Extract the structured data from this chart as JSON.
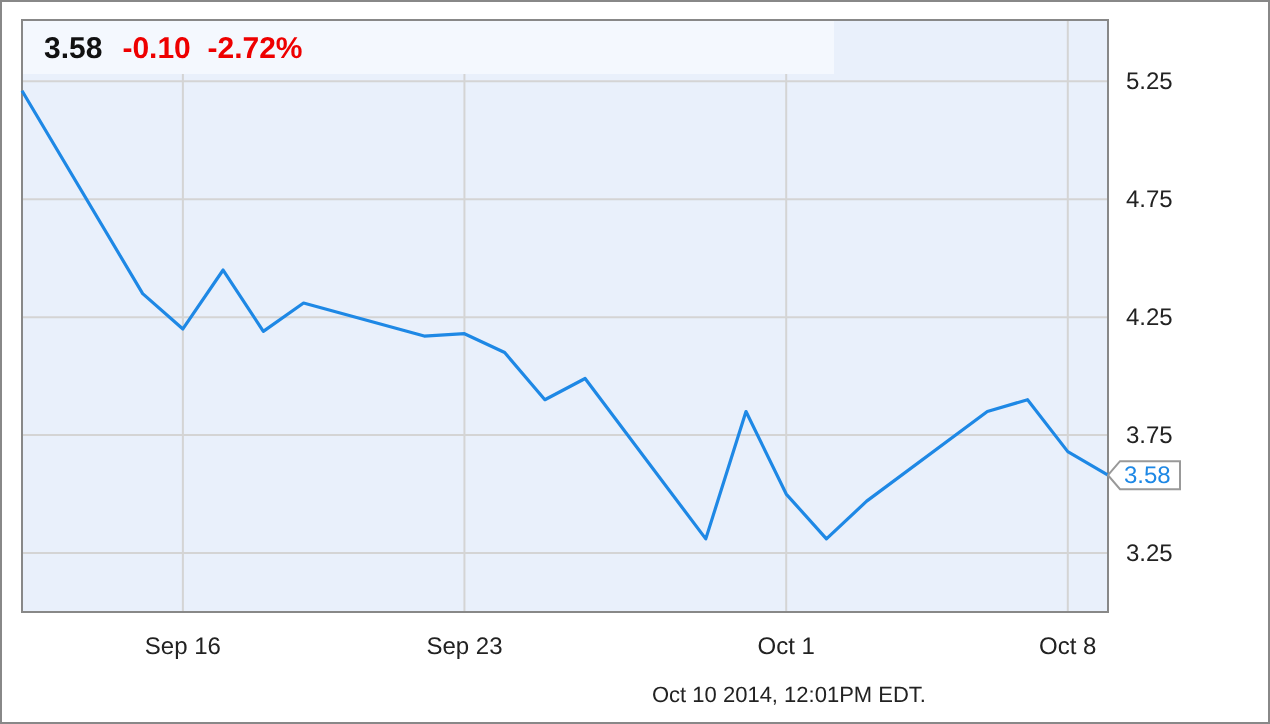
{
  "chart_data": {
    "type": "line",
    "title": "3.58",
    "subtitle": "-0.10  -2.72%",
    "x": [
      "2014-09-12",
      "2014-09-15",
      "2014-09-16",
      "2014-09-17",
      "2014-09-18",
      "2014-09-19",
      "2014-09-22",
      "2014-09-23",
      "2014-09-24",
      "2014-09-25",
      "2014-09-26",
      "2014-09-29",
      "2014-09-30",
      "2014-10-01",
      "2014-10-02",
      "2014-10-03",
      "2014-10-06",
      "2014-10-07",
      "2014-10-08",
      "2014-10-09"
    ],
    "series": [
      {
        "color": "#1e88e5",
        "values": [
          5.21,
          4.35,
          4.2,
          4.45,
          4.19,
          4.31,
          4.17,
          4.18,
          4.1,
          3.9,
          3.99,
          3.31,
          3.85,
          3.5,
          3.31,
          3.47,
          3.85,
          3.9,
          3.68,
          3.58
        ]
      }
    ],
    "xlim": [
      "2014-09-12",
      "2014-10-09"
    ],
    "xticks": [
      {
        "value": "2014-09-16",
        "label": "Sep 16"
      },
      {
        "value": "2014-09-23",
        "label": "Sep 23"
      },
      {
        "value": "2014-10-01",
        "label": "Oct 1"
      },
      {
        "value": "2014-10-08",
        "label": "Oct 8"
      }
    ],
    "ylim": [
      3.0,
      5.51
    ],
    "yticks": [
      3.25,
      3.75,
      4.25,
      4.75,
      5.25
    ],
    "grid": true,
    "marker": "none",
    "line_style": "solid",
    "annotations": [
      {
        "text": "3.58",
        "x": "2014-10-09",
        "y": 3.58
      },
      "Oct 10 2014, 12:01PM EDT."
    ]
  }
}
